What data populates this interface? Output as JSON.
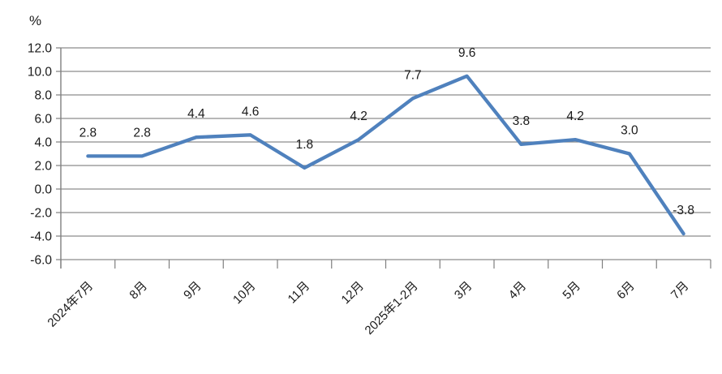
{
  "chart_data": {
    "type": "line",
    "title": "",
    "unit_label": "%",
    "categories": [
      "2024年7月",
      "8月",
      "9月",
      "10月",
      "11月",
      "12月",
      "2025年1-2月",
      "3月",
      "4月",
      "5月",
      "6月",
      "7月"
    ],
    "values": [
      2.8,
      2.8,
      4.4,
      4.6,
      1.8,
      4.2,
      7.7,
      9.6,
      3.8,
      4.2,
      3.0,
      -3.8
    ],
    "data_labels": [
      "2.8",
      "2.8",
      "4.4",
      "4.6",
      "1.8",
      "4.2",
      "7.7",
      "9.6",
      "3.8",
      "4.2",
      "3.0",
      "-3.8"
    ],
    "ylim": [
      -6.0,
      12.0
    ],
    "ytick_step": 2.0,
    "ytick_decimals": 1,
    "grid": true,
    "legend_position": "none",
    "x_label_rotation_deg": -45,
    "colors": {
      "line": "#4F81BD",
      "gridline": "#8C8C8C",
      "axis": "#7F7F7F",
      "text": "#1A1A1A",
      "background": "#FFFFFF"
    }
  }
}
